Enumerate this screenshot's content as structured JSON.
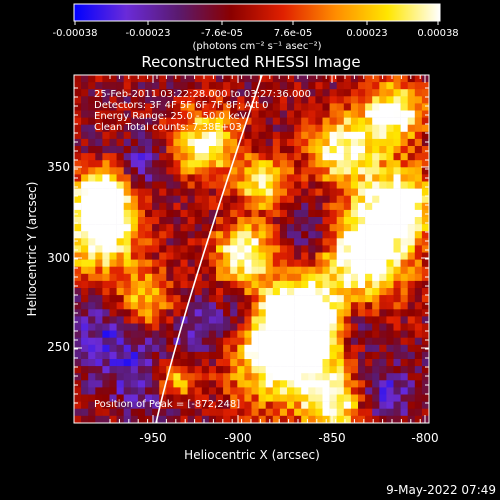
{
  "colorbar": {
    "tick_labels": [
      "-0.00038",
      "-0.00023",
      "-7.6e-05",
      "7.6e-05",
      "0.00023",
      "0.00038"
    ],
    "units": "(photons cm⁻² s⁻¹ asec⁻²)",
    "min": -0.00038,
    "max": 0.00038,
    "stops": [
      "#0000ff",
      "#6a2bd9",
      "#5a1a6e",
      "#8a0000",
      "#e02000",
      "#ff8c00",
      "#ffe600",
      "#ffffff"
    ]
  },
  "image": {
    "title": "Reconstructed RHESSI Image",
    "info_lines": [
      "25-Feb-2011 03:22:28.000  to 03:27:36.000",
      "Detectors: 3F 4F 5F 6F 7F 8F; Att 0",
      "Energy Range: 25.0 - 50.0 keV",
      "Clean     Total counts: 7.38E+03"
    ],
    "peak_label": "Position of Peak = [-872,248]",
    "xlabel": "Heliocentric X (arcsec)",
    "ylabel": "Heliocentric Y (arcsec)",
    "x_ticks": [
      "-950",
      "-900",
      "-850",
      "-800"
    ],
    "y_ticks": [
      "250",
      "300",
      "350"
    ],
    "x_range": [
      -987,
      -790
    ],
    "y_range": [
      206,
      396
    ]
  },
  "footer": {
    "timestamp": "9-May-2022 07:49"
  }
}
